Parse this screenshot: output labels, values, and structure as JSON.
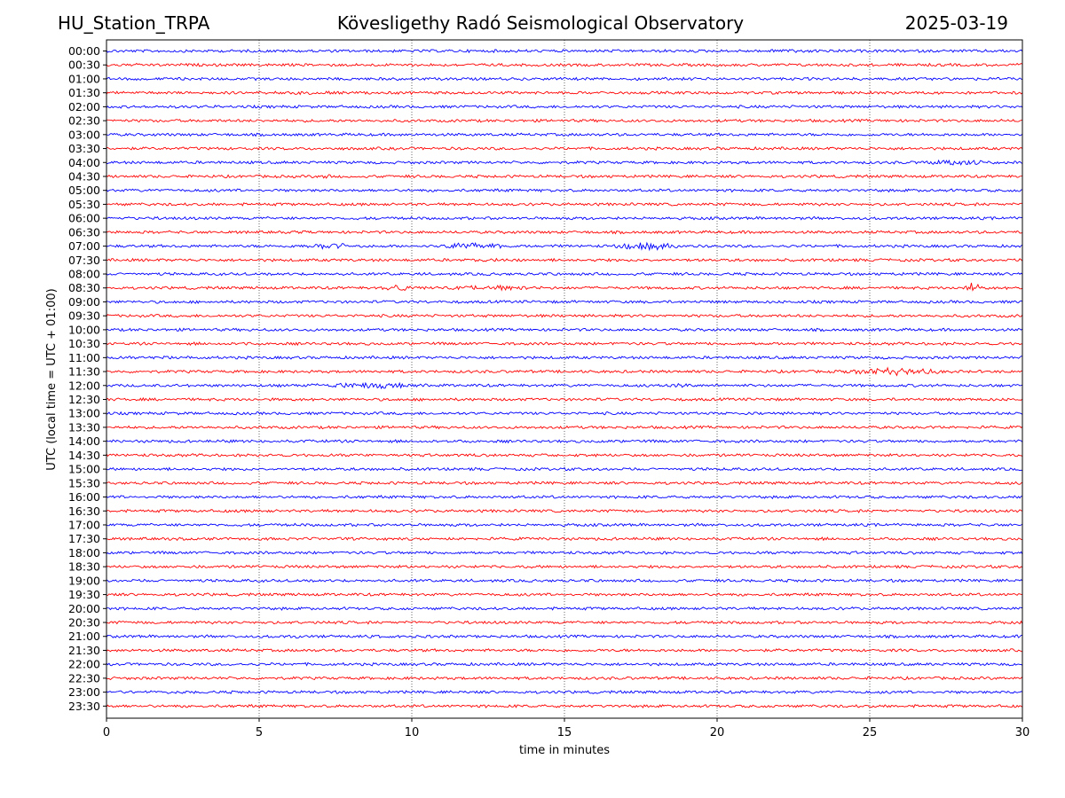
{
  "header": {
    "station": "HU_Station_TRPA",
    "observatory": "Kövesligethy Radó Seismological Observatory",
    "date": "2025-03-19"
  },
  "chart_data": {
    "type": "line",
    "title": "Kövesligethy Radó Seismological Observatory",
    "xlabel": "time in minutes",
    "ylabel": "UTC (local time = UTC + 01:00)",
    "xlim": [
      0,
      30
    ],
    "x_ticks": [
      "0",
      "5",
      "10",
      "15",
      "20",
      "25",
      "30"
    ],
    "x_grid": true,
    "x_grid_style": "dotted vertical lines at each 5-minute tick",
    "series_colors": [
      "#0000ff",
      "#ff0000"
    ],
    "color_rule": "alternating by row: full hours blue, half hours red",
    "rows": [
      {
        "label": "00:00",
        "events": [
          {
            "start": 21.7,
            "end": 23.5,
            "amp": 1.6
          }
        ]
      },
      {
        "label": "00:30",
        "events": []
      },
      {
        "label": "01:00",
        "events": []
      },
      {
        "label": "01:30",
        "events": [
          {
            "start": 5.1,
            "end": 8.5,
            "amp": 1.5
          }
        ]
      },
      {
        "label": "02:00",
        "events": []
      },
      {
        "label": "02:30",
        "events": []
      },
      {
        "label": "03:00",
        "events": []
      },
      {
        "label": "03:30",
        "events": []
      },
      {
        "label": "04:00",
        "events": [
          {
            "start": 26.5,
            "end": 29.5,
            "amp": 2.4
          }
        ]
      },
      {
        "label": "04:30",
        "events": [
          {
            "start": 7.0,
            "end": 7.4,
            "amp": 2.6
          }
        ]
      },
      {
        "label": "05:00",
        "events": []
      },
      {
        "label": "05:30",
        "events": []
      },
      {
        "label": "06:00",
        "events": []
      },
      {
        "label": "06:30",
        "events": [
          {
            "start": 5.8,
            "end": 6.8,
            "amp": 1.3
          }
        ]
      },
      {
        "label": "07:00",
        "events": [
          {
            "start": 6.2,
            "end": 8.5,
            "amp": 2.6
          },
          {
            "start": 10.8,
            "end": 13.3,
            "amp": 3.0
          },
          {
            "start": 16.5,
            "end": 19.0,
            "amp": 3.2
          }
        ]
      },
      {
        "label": "07:30",
        "events": [
          {
            "start": 11.5,
            "end": 13.5,
            "amp": 1.5
          }
        ]
      },
      {
        "label": "08:00",
        "events": []
      },
      {
        "label": "08:30",
        "events": [
          {
            "start": 9.0,
            "end": 10.2,
            "amp": 3.4
          },
          {
            "start": 11.0,
            "end": 14.5,
            "amp": 2.4
          },
          {
            "start": 28.0,
            "end": 28.7,
            "amp": 4.2
          }
        ]
      },
      {
        "label": "09:00",
        "events": []
      },
      {
        "label": "09:30",
        "events": []
      },
      {
        "label": "10:00",
        "events": []
      },
      {
        "label": "10:30",
        "events": [
          {
            "start": 0.0,
            "end": 0.8,
            "amp": 1.5
          },
          {
            "start": 4.3,
            "end": 4.9,
            "amp": 1.3
          }
        ]
      },
      {
        "label": "11:00",
        "events": [
          {
            "start": 1.0,
            "end": 3.0,
            "amp": 1.5
          }
        ]
      },
      {
        "label": "11:30",
        "events": [
          {
            "start": 24.0,
            "end": 27.5,
            "amp": 3.2
          }
        ]
      },
      {
        "label": "12:00",
        "events": [
          {
            "start": 6.0,
            "end": 11.0,
            "amp": 2.4
          },
          {
            "start": 18.2,
            "end": 19.5,
            "amp": 2.0
          }
        ]
      },
      {
        "label": "12:30",
        "events": []
      },
      {
        "label": "13:00",
        "events": [
          {
            "start": 19.7,
            "end": 21.3,
            "amp": 1.5
          }
        ]
      },
      {
        "label": "13:30",
        "events": [
          {
            "start": 26.7,
            "end": 27.3,
            "amp": 1.6
          }
        ]
      },
      {
        "label": "14:00",
        "events": []
      },
      {
        "label": "14:30",
        "events": []
      },
      {
        "label": "15:00",
        "events": []
      },
      {
        "label": "15:30",
        "events": []
      },
      {
        "label": "16:00",
        "events": []
      },
      {
        "label": "16:30",
        "events": []
      },
      {
        "label": "17:00",
        "events": []
      },
      {
        "label": "17:30",
        "events": []
      },
      {
        "label": "18:00",
        "events": []
      },
      {
        "label": "18:30",
        "events": []
      },
      {
        "label": "19:00",
        "events": []
      },
      {
        "label": "19:30",
        "events": []
      },
      {
        "label": "20:00",
        "events": []
      },
      {
        "label": "20:30",
        "events": []
      },
      {
        "label": "21:00",
        "events": [
          {
            "start": 6.0,
            "end": 6.3,
            "amp": 2.8
          },
          {
            "start": 9.0,
            "end": 12.0,
            "amp": 1.1
          }
        ]
      },
      {
        "label": "21:30",
        "events": []
      },
      {
        "label": "22:00",
        "events": []
      },
      {
        "label": "22:30",
        "events": []
      },
      {
        "label": "23:00",
        "events": [
          {
            "start": 1.7,
            "end": 2.6,
            "amp": 1.4
          }
        ]
      },
      {
        "label": "23:30",
        "events": []
      }
    ]
  }
}
